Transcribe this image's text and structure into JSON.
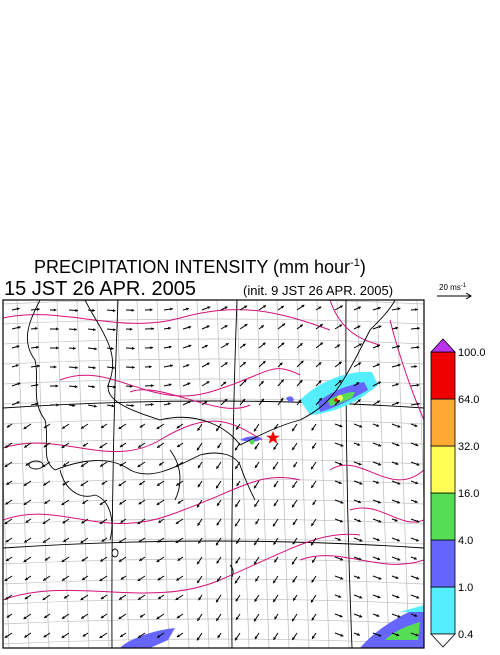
{
  "title": {
    "text": "PRECIPITATION INTENSITY (mm hour",
    "superscript": "-1",
    "closing": ")"
  },
  "valid_time": "15 JST 26 APR. 2005",
  "init_time": "(init. 9 JST 26 APR. 2005)",
  "wind_scale": {
    "text": "20 ms",
    "superscript": "-1"
  },
  "colorbar": {
    "levels": [
      {
        "value": 0.4,
        "label": "0.4"
      },
      {
        "value": 1,
        "label": "1.0"
      },
      {
        "value": 4,
        "label": "4.0"
      },
      {
        "value": 16,
        "label": "16.0"
      },
      {
        "value": 32,
        "label": "32.0"
      },
      {
        "value": 64,
        "label": "64.0"
      },
      {
        "value": 100,
        "label": "100.0"
      }
    ],
    "colors": [
      "#55eeff",
      "#6666ff",
      "#55dd55",
      "#ffff55",
      "#ffaa33",
      "#ee0000"
    ],
    "over_color": "#bb33ee",
    "under_color": "#ffffff"
  }
}
